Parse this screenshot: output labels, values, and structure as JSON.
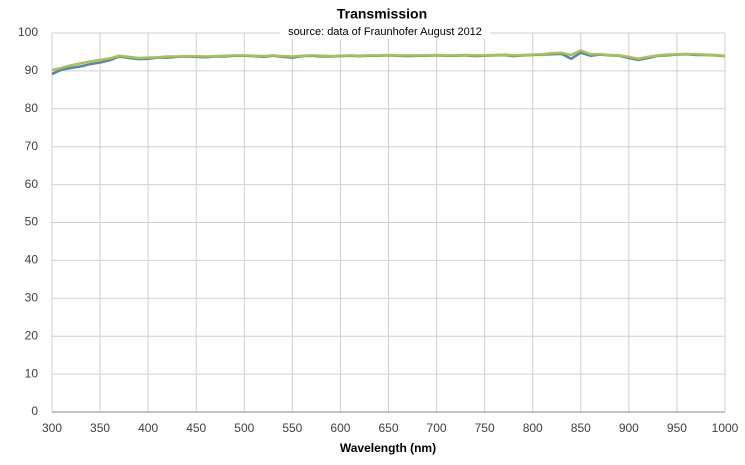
{
  "chart_data": {
    "type": "line",
    "title": "Transmission",
    "subtitle": "source: data of Fraunhofer August 2012",
    "x_label": "Wavelength (nm)",
    "x": [
      300,
      310,
      320,
      330,
      340,
      350,
      360,
      370,
      380,
      390,
      400,
      410,
      420,
      430,
      440,
      450,
      460,
      470,
      480,
      490,
      500,
      510,
      520,
      530,
      540,
      550,
      560,
      570,
      580,
      590,
      600,
      610,
      620,
      630,
      640,
      650,
      660,
      670,
      680,
      690,
      700,
      710,
      720,
      730,
      740,
      750,
      760,
      770,
      780,
      790,
      800,
      810,
      820,
      830,
      840,
      850,
      860,
      870,
      880,
      890,
      900,
      910,
      920,
      930,
      940,
      950,
      960,
      970,
      980,
      990,
      1000
    ],
    "series": [
      {
        "color": "#5a7fbf",
        "values": [
          89.2,
          90.3,
          90.8,
          91.2,
          91.8,
          92.2,
          92.8,
          93.8,
          93.4,
          93.1,
          93.2,
          93.5,
          93.5,
          93.7,
          93.8,
          93.7,
          93.6,
          93.8,
          93.8,
          94.0,
          94.0,
          93.9,
          93.7,
          94.0,
          93.7,
          93.5,
          93.9,
          94.0,
          93.8,
          93.8,
          93.9,
          94.0,
          93.9,
          94.0,
          94.0,
          94.1,
          94.0,
          93.9,
          94.0,
          94.0,
          94.1,
          94.0,
          94.0,
          94.1,
          93.9,
          94.0,
          94.1,
          94.2,
          93.9,
          94.1,
          94.2,
          94.3,
          94.4,
          94.5,
          93.2,
          94.8,
          94.0,
          94.3,
          94.1,
          94.0,
          93.4,
          92.9,
          93.4,
          94.0,
          94.1,
          94.3,
          94.4,
          94.2,
          94.2,
          94.1,
          93.9
        ]
      },
      {
        "color": "#a6c44c",
        "values": [
          90.2,
          90.8,
          91.5,
          92.0,
          92.5,
          92.9,
          93.3,
          94.0,
          93.7,
          93.4,
          93.5,
          93.6,
          93.8,
          93.8,
          93.9,
          93.9,
          93.8,
          93.9,
          94.0,
          94.1,
          94.1,
          94.0,
          93.9,
          94.1,
          93.9,
          93.8,
          94.0,
          94.1,
          94.0,
          93.9,
          94.0,
          94.1,
          94.0,
          94.1,
          94.1,
          94.2,
          94.1,
          94.1,
          94.1,
          94.1,
          94.2,
          94.1,
          94.1,
          94.2,
          94.1,
          94.1,
          94.2,
          94.3,
          94.1,
          94.2,
          94.3,
          94.4,
          94.7,
          94.8,
          94.2,
          95.4,
          94.4,
          94.4,
          94.2,
          94.1,
          93.7,
          93.2,
          93.7,
          94.1,
          94.3,
          94.4,
          94.5,
          94.4,
          94.3,
          94.2,
          94.0
        ]
      }
    ],
    "xlim": [
      300,
      1000
    ],
    "xticks": [
      300,
      350,
      400,
      450,
      500,
      550,
      600,
      650,
      700,
      750,
      800,
      850,
      900,
      950,
      1000
    ],
    "ylim": [
      0,
      100
    ],
    "yticks": [
      0,
      10,
      20,
      30,
      40,
      50,
      60,
      70,
      80,
      90,
      100
    ],
    "grid": true
  }
}
